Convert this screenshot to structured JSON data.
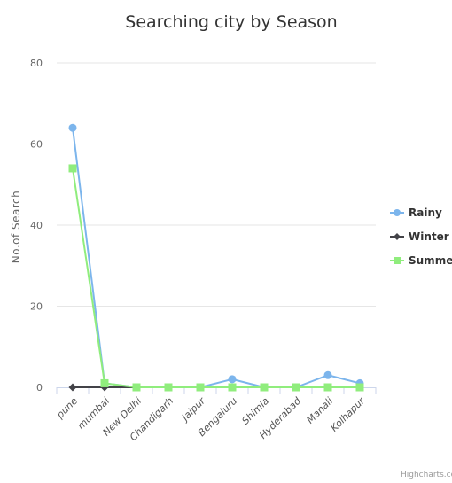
{
  "chart_data": {
    "type": "line",
    "title": "Searching city by Season",
    "ylabel": "No.of Search",
    "xlabel": "",
    "ylim": [
      0,
      80
    ],
    "yticks": [
      0,
      20,
      40,
      60,
      80
    ],
    "grid": true,
    "legend_position": "right",
    "categories": [
      "pune",
      "mumbai",
      "New Delhi",
      "Chandigarh",
      "Jaipur",
      "Bengaluru",
      "Shimla",
      "Hyderabad",
      "Manali",
      "Kolhapur"
    ],
    "series": [
      {
        "name": "Rainy",
        "color": "#7cb5ec",
        "marker": "circle",
        "values": [
          64,
          1,
          0,
          0,
          0,
          2,
          0,
          0,
          3,
          1
        ]
      },
      {
        "name": "Winter",
        "color": "#434348",
        "marker": "diamond",
        "values": [
          0,
          0,
          0,
          0,
          0,
          0,
          0,
          0,
          0,
          0
        ]
      },
      {
        "name": "Summer",
        "color": "#90ed7d",
        "marker": "square",
        "values": [
          54,
          1,
          0,
          0,
          0,
          0,
          0,
          0,
          0,
          0
        ]
      }
    ]
  },
  "credits": "Highcharts.com"
}
